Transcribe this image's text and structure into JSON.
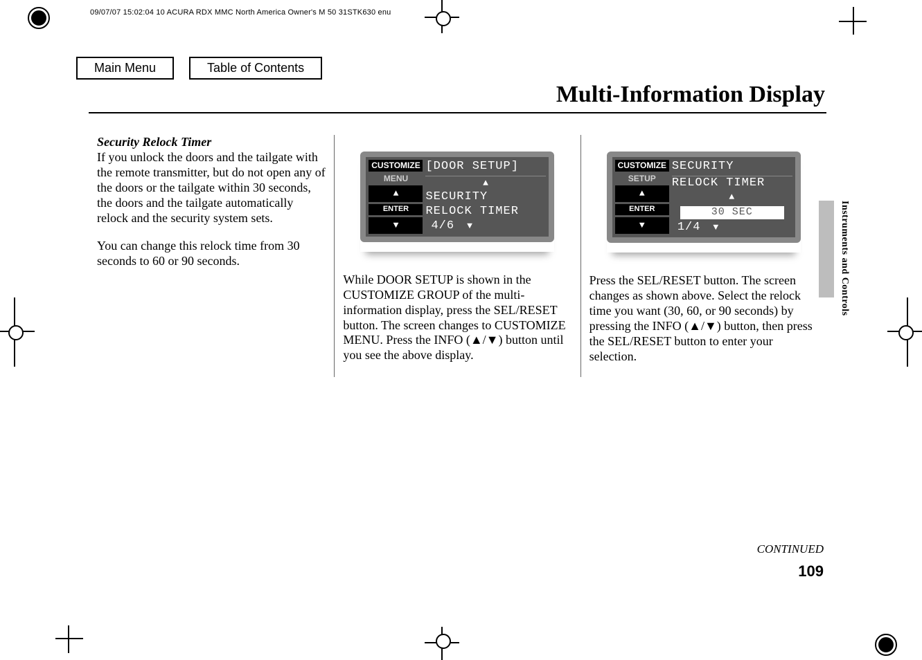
{
  "headerMeta": "09/07/07 15:02:04    10 ACURA RDX MMC North America Owner's M 50 31STK630 enu",
  "nav": {
    "mainMenu": "Main Menu",
    "toc": "Table of Contents"
  },
  "sectionTitle": "Multi-Information Display",
  "sideLabel": "Instruments and Controls",
  "continued": "CONTINUED",
  "pageNumber": "109",
  "col1": {
    "heading": "Security Relock Timer",
    "p1": "If you unlock the doors and the tailgate with the remote transmitter, but do not open any of the doors or the tailgate within 30 seconds, the doors and the tailgate automatically relock and the security system sets.",
    "p2": "You can change this relock time from 30 seconds to 60 or 90 seconds."
  },
  "col2": {
    "lcd": {
      "topLabel": "CUSTOMIZE",
      "subLabel": "MENU",
      "enter": "ENTER",
      "r1": "[DOOR SETUP]",
      "r2": "SECURITY",
      "r3": "RELOCK TIMER",
      "r4": "4/6"
    },
    "p1": "While DOOR SETUP is shown in the CUSTOMIZE GROUP of the multi-information display, press the SEL/RESET button. The screen changes to CUSTOMIZE MENU. Press the INFO (▲/▼) button until you see the above display."
  },
  "col3": {
    "lcd": {
      "topLabel": "CUSTOMIZE",
      "subLabel": "SETUP",
      "enter": "ENTER",
      "r1": "SECURITY",
      "r2": "RELOCK TIMER",
      "r3": "30 SEC",
      "r4": "1/4"
    },
    "p1": "Press the SEL/RESET button. The screen changes as shown above. Select the relock time you want (30, 60, or 90 seconds) by pressing the INFO (▲/▼) button, then press the SEL/RESET button to enter your selection."
  },
  "style": {
    "accent": "#888888",
    "lcdBg": "#565656",
    "tabBg": "#bdbdbd"
  }
}
